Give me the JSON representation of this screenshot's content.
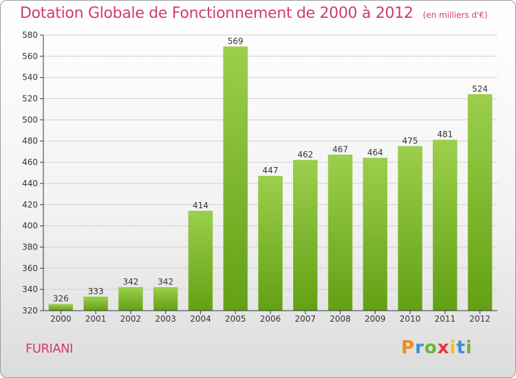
{
  "header": {
    "title": "Dotation Globale de Fonctionnement de 2000 à 2012",
    "unit": "(en milliers d'€)"
  },
  "footer": {
    "commune": "FURIANI",
    "logo_text": "Proxiti"
  },
  "colors": {
    "accent": "#d23c64",
    "bar_top": "#9ccf4c",
    "bar_bottom": "#62a014",
    "grid": "#d0d0d0",
    "axis": "#333333"
  },
  "chart_data": {
    "type": "bar",
    "title": "Dotation Globale de Fonctionnement de 2000 à 2012",
    "subtitle": "(en milliers d'€)",
    "xlabel": "",
    "ylabel": "",
    "categories": [
      "2000",
      "2001",
      "2002",
      "2003",
      "2004",
      "2005",
      "2006",
      "2007",
      "2008",
      "2009",
      "2010",
      "2011",
      "2012"
    ],
    "values": [
      326,
      333,
      342,
      342,
      414,
      569,
      447,
      462,
      467,
      464,
      475,
      481,
      524
    ],
    "data_labels": [
      "326",
      "333",
      "342",
      "342",
      "414",
      "569",
      "447",
      "462",
      "467",
      "464",
      "475",
      "481",
      "524"
    ],
    "ylim": [
      320,
      580
    ],
    "yticks": [
      320,
      340,
      360,
      380,
      400,
      420,
      440,
      460,
      480,
      500,
      520,
      540,
      560,
      580
    ],
    "grid": true,
    "legend": "none"
  }
}
